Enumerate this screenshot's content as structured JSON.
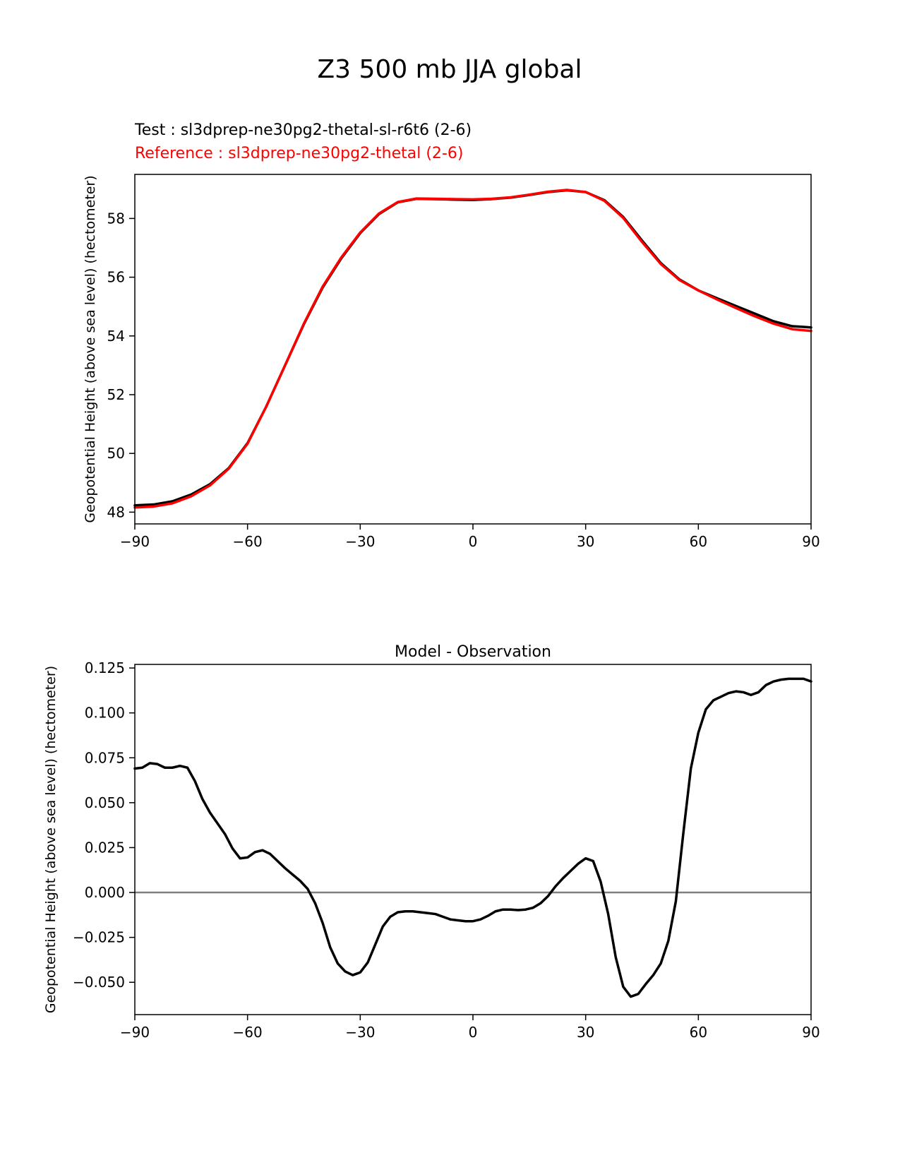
{
  "figure_title": "Z3 500 mb JJA global",
  "chart_data": [
    {
      "type": "line",
      "title": "",
      "legend_texts": [
        "Test : sl3dprep-ne30pg2-thetal-sl-r6t6 (2-6)",
        "Reference : sl3dprep-ne30pg2-thetal (2-6)"
      ],
      "legend_placement": "top-left, above axes",
      "xlabel": "",
      "ylabel": "Geopotential Height (above sea level) (hectometer)",
      "xlim": [
        -90,
        90
      ],
      "ylim": [
        47.6,
        59.5
      ],
      "xticks": [
        -90,
        -60,
        -30,
        0,
        30,
        60,
        90
      ],
      "xtick_labels": [
        "−90",
        "−60",
        "−30",
        "0",
        "30",
        "60",
        "90"
      ],
      "yticks": [
        48,
        50,
        52,
        54,
        56,
        58
      ],
      "ytick_labels": [
        "48",
        "50",
        "52",
        "54",
        "56",
        "58"
      ],
      "grid": false,
      "x": [
        -90,
        -85,
        -80,
        -75,
        -70,
        -65,
        -60,
        -55,
        -50,
        -45,
        -40,
        -35,
        -30,
        -25,
        -20,
        -15,
        -10,
        -5,
        0,
        5,
        10,
        15,
        20,
        25,
        30,
        35,
        40,
        45,
        50,
        55,
        60,
        65,
        70,
        75,
        80,
        85,
        90
      ],
      "series": [
        {
          "name": "Test : sl3dprep-ne30pg2-thetal-sl-r6t6 (2-6)",
          "color": "#000000",
          "values": [
            48.23,
            48.26,
            48.37,
            48.6,
            48.95,
            49.5,
            50.35,
            51.6,
            53.0,
            54.4,
            55.65,
            56.65,
            57.5,
            58.15,
            58.55,
            58.67,
            58.66,
            58.64,
            58.63,
            58.66,
            58.71,
            58.8,
            58.9,
            58.96,
            58.9,
            58.62,
            58.05,
            57.25,
            56.48,
            55.92,
            55.55,
            55.28,
            55.02,
            54.76,
            54.5,
            54.33,
            54.29
          ]
        },
        {
          "name": "Reference : sl3dprep-ne30pg2-thetal (2-6)",
          "color": "#ff0000",
          "values": [
            48.16,
            48.19,
            48.3,
            48.54,
            48.91,
            49.48,
            50.33,
            51.6,
            53.0,
            54.42,
            55.68,
            56.68,
            57.52,
            58.17,
            58.56,
            58.68,
            58.67,
            58.66,
            58.65,
            58.67,
            58.72,
            58.81,
            58.91,
            58.97,
            58.9,
            58.6,
            58.02,
            57.2,
            56.45,
            55.9,
            55.55,
            55.24,
            54.95,
            54.67,
            54.42,
            54.23,
            54.17
          ]
        }
      ]
    },
    {
      "type": "line",
      "title": "Model - Observation",
      "xlabel": "",
      "ylabel": "Geopotential Height (above sea level) (hectometer)",
      "xlim": [
        -90,
        90
      ],
      "ylim": [
        -0.068,
        0.127
      ],
      "xticks": [
        -90,
        -60,
        -30,
        0,
        30,
        60,
        90
      ],
      "xtick_labels": [
        "−90",
        "−60",
        "−30",
        "0",
        "30",
        "60",
        "90"
      ],
      "yticks": [
        -0.05,
        -0.025,
        0.0,
        0.025,
        0.05,
        0.075,
        0.1,
        0.125
      ],
      "ytick_labels": [
        "−0.050",
        "−0.025",
        "0.000",
        "0.025",
        "0.050",
        "0.075",
        "0.100",
        "0.125"
      ],
      "grid": false,
      "zero_line": {
        "y": 0,
        "color": "#808080"
      },
      "series": [
        {
          "color": "#000000",
          "x": [
            -90,
            -88,
            -86,
            -84,
            -82,
            -80,
            -78,
            -76,
            -74,
            -72,
            -70,
            -68,
            -66,
            -64,
            -62,
            -60,
            -58,
            -56,
            -54,
            -52,
            -50,
            -48,
            -46,
            -44,
            -42,
            -40,
            -38,
            -36,
            -34,
            -32,
            -30,
            -28,
            -26,
            -24,
            -22,
            -20,
            -18,
            -16,
            -14,
            -12,
            -10,
            -8,
            -6,
            -4,
            -2,
            0,
            2,
            4,
            6,
            8,
            10,
            12,
            14,
            16,
            18,
            20,
            22,
            24,
            26,
            28,
            30,
            32,
            34,
            36,
            38,
            40,
            42,
            44,
            46,
            48,
            50,
            52,
            54,
            56,
            58,
            60,
            62,
            64,
            66,
            68,
            70,
            72,
            74,
            76,
            78,
            80,
            82,
            84,
            86,
            88,
            90
          ],
          "values": [
            0.069,
            0.0695,
            0.072,
            0.0715,
            0.0695,
            0.0695,
            0.0705,
            0.0695,
            0.062,
            0.052,
            0.0445,
            0.0385,
            0.0325,
            0.0245,
            0.019,
            0.0195,
            0.0225,
            0.0235,
            0.0215,
            0.0175,
            0.0135,
            0.01,
            0.0065,
            0.002,
            -0.006,
            -0.017,
            -0.0305,
            -0.0395,
            -0.044,
            -0.046,
            -0.0445,
            -0.039,
            -0.029,
            -0.019,
            -0.0135,
            -0.011,
            -0.0105,
            -0.0105,
            -0.011,
            -0.0115,
            -0.012,
            -0.0135,
            -0.015,
            -0.0155,
            -0.016,
            -0.016,
            -0.015,
            -0.013,
            -0.0105,
            -0.0095,
            -0.0095,
            -0.0098,
            -0.0095,
            -0.0085,
            -0.006,
            -0.002,
            0.0035,
            0.008,
            0.012,
            0.016,
            0.019,
            0.0175,
            0.006,
            -0.012,
            -0.036,
            -0.0525,
            -0.058,
            -0.0565,
            -0.051,
            -0.046,
            -0.0395,
            -0.027,
            -0.005,
            0.033,
            0.069,
            0.089,
            0.102,
            0.107,
            0.109,
            0.111,
            0.112,
            0.1115,
            0.11,
            0.1115,
            0.1155,
            0.1175,
            0.1185,
            0.119,
            0.119,
            0.119,
            0.1175
          ]
        }
      ]
    }
  ]
}
